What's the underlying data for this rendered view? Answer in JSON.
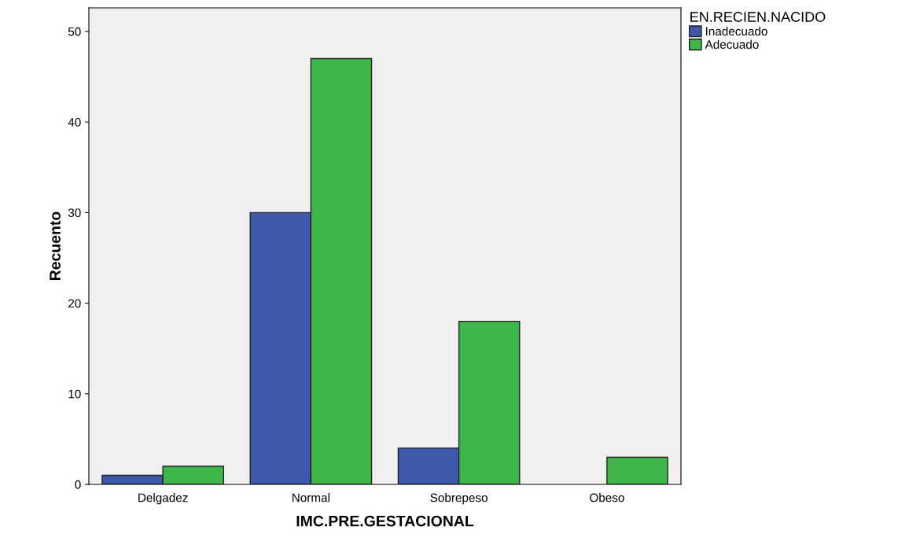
{
  "chart_data": {
    "type": "bar",
    "xlabel": "IMC.PRE.GESTACIONAL",
    "ylabel": "Recuento",
    "legend_title": "EN.RECIEN.NACIDO",
    "categories": [
      "Delgadez",
      "Normal",
      "Sobrepeso",
      "Obeso"
    ],
    "series": [
      {
        "name": "Inadecuado",
        "color": "#3e58ac",
        "values": [
          1,
          30,
          4,
          null
        ]
      },
      {
        "name": "Adecuado",
        "color": "#3eb649",
        "values": [
          2,
          47,
          18,
          3
        ]
      }
    ],
    "ylim": [
      0,
      52.6
    ],
    "yticks": [
      0,
      10,
      20,
      30,
      40,
      50
    ],
    "grid": false,
    "legend": "top right"
  }
}
